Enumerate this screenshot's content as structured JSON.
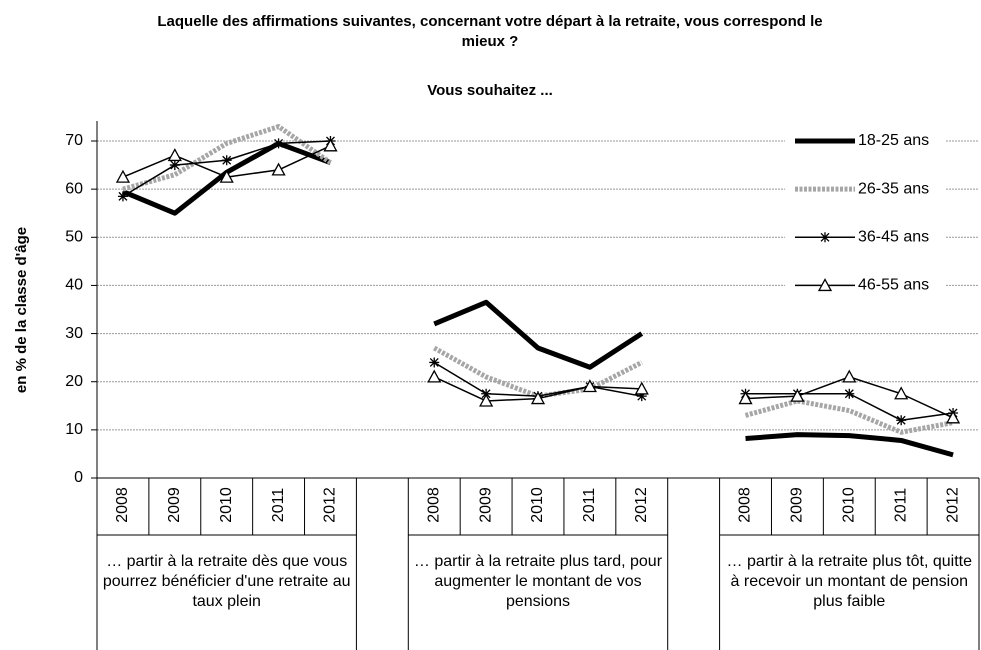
{
  "chart_data": {
    "type": "line",
    "title": "Laquelle des affirmations suivantes, concernant votre départ à la retraite, vous correspond le mieux ?",
    "subtitle": "Vous souhaitez ...",
    "y_label": "en % de la classe d'âge",
    "groups": [
      "… partir à la retraite dès que vous pourrez bénéficier d'une retraite au taux plein",
      "… partir à la retraite plus tard, pour augmenter le montant de vos pensions",
      "… partir à la retraite plus tôt, quitte à recevoir un montant de pension plus faible"
    ],
    "categories": [
      "2008",
      "2009",
      "2010",
      "2011",
      "2012",
      null,
      "2008",
      "2009",
      "2010",
      "2011",
      "2012",
      null,
      "2008",
      "2009",
      "2010",
      "2011",
      "2012"
    ],
    "series": [
      {
        "name": "18-25 ans",
        "color": "#000000",
        "line_width": 5,
        "marker": "none",
        "values": [
          59.5,
          55,
          63.5,
          69.5,
          65.5,
          null,
          32,
          36.5,
          27,
          23,
          30,
          null,
          8.2,
          9,
          8.8,
          7.8,
          4.8
        ]
      },
      {
        "name": "26-35 ans",
        "color": "#a6a6a6",
        "line_width": 5,
        "marker": "none",
        "dashed": true,
        "values": [
          60,
          63,
          69.5,
          73,
          65.5,
          null,
          27,
          21,
          17,
          18.5,
          24,
          null,
          13,
          16,
          14,
          9.5,
          11.5
        ]
      },
      {
        "name": "36-45 ans",
        "color": "#000000",
        "line_width": 1.5,
        "marker": "star",
        "values": [
          58.5,
          65,
          66,
          69.5,
          70,
          null,
          24,
          17.5,
          17,
          19,
          17,
          null,
          17.5,
          17.5,
          17.5,
          12,
          13.5
        ]
      },
      {
        "name": "46-55 ans",
        "color": "#000000",
        "line_width": 1.5,
        "marker": "triangle",
        "values": [
          62.5,
          67,
          62.5,
          64,
          69,
          null,
          21,
          16,
          16.5,
          19,
          18.5,
          null,
          16.5,
          17,
          21,
          17.5,
          12.5
        ]
      }
    ],
    "ylim": [
      0,
      70
    ],
    "yticks": [
      0,
      10,
      20,
      30,
      40,
      50,
      60,
      70
    ],
    "grid": true,
    "legend": "right"
  }
}
